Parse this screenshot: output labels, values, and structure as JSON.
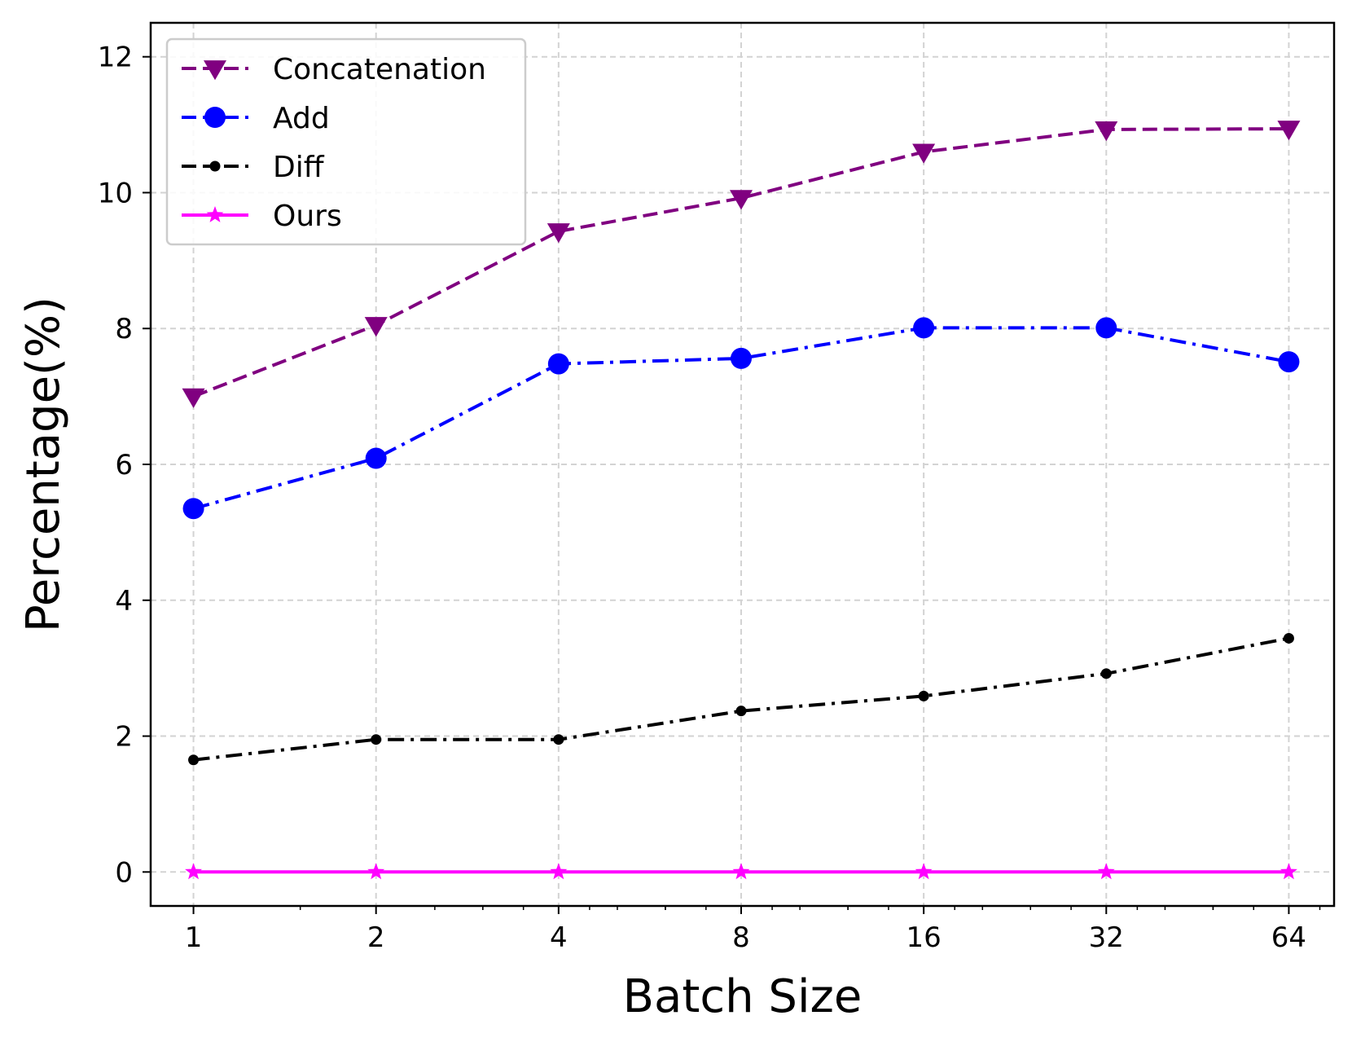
{
  "chart_data": {
    "type": "line",
    "title": "",
    "xlabel": "Batch Size",
    "ylabel": "Percentage(%)",
    "x_scale": "log2",
    "x": [
      1,
      2,
      4,
      8,
      16,
      32,
      64
    ],
    "x_tick_labels": [
      "1",
      "2",
      "4",
      "8",
      "16",
      "32",
      "64"
    ],
    "y_ticks": [
      0,
      2,
      4,
      6,
      8,
      10,
      12
    ],
    "y_tick_labels": [
      "0",
      "2",
      "4",
      "6",
      "8",
      "10",
      "12"
    ],
    "xlim": [
      0.85,
      76
    ],
    "ylim": [
      -0.5,
      12.5
    ],
    "grid": true,
    "legend_position": "top-left",
    "series": [
      {
        "name": "Concatenation",
        "values": [
          7.0,
          8.05,
          9.43,
          9.92,
          10.6,
          10.93,
          10.94
        ],
        "color": "#800080",
        "marker": "triangle-down",
        "line_style": "dashed"
      },
      {
        "name": "Add",
        "values": [
          5.35,
          6.09,
          7.48,
          7.56,
          8.01,
          8.01,
          7.51
        ],
        "color": "#0000ff",
        "marker": "circle",
        "line_style": "dashdot"
      },
      {
        "name": "Diff",
        "values": [
          1.65,
          1.95,
          1.95,
          2.37,
          2.59,
          2.92,
          3.44
        ],
        "color": "#000000",
        "marker": "small-circle",
        "line_style": "dashdot"
      },
      {
        "name": "Ours",
        "values": [
          0,
          0,
          0,
          0,
          0,
          0,
          0
        ],
        "color": "#ff00ff",
        "marker": "star",
        "line_style": "solid"
      }
    ]
  }
}
